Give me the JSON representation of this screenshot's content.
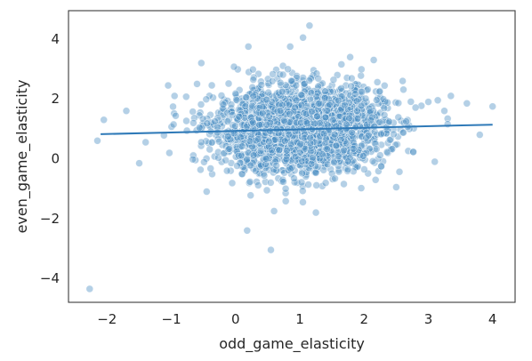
{
  "chart_data": {
    "type": "scatter",
    "title": "",
    "xlabel": "odd_game_elasticity",
    "ylabel": "even_game_elasticity",
    "xlim": [
      -2.6,
      4.35
    ],
    "ylim": [
      -4.8,
      4.95
    ],
    "xticks": [
      -2,
      -1,
      0,
      1,
      2,
      3,
      4
    ],
    "yticks": [
      -4,
      -2,
      0,
      2,
      4
    ],
    "xtick_labels": [
      "−2",
      "−1",
      "0",
      "1",
      "2",
      "3",
      "4"
    ],
    "ytick_labels": [
      "−4",
      "−2",
      "0",
      "2",
      "4"
    ],
    "grid": false,
    "legend": "none",
    "colors": {
      "points": "#4c8fc4",
      "point_edge": "#ffffff",
      "trend_line": "#2f7ab8",
      "axes_frame": "#3b3b3b"
    },
    "trend_line": {
      "x": [
        -2.1,
        4.0
      ],
      "y": [
        0.82,
        1.14
      ]
    },
    "cloud": {
      "n_points": 2400,
      "x_mean": 1.0,
      "x_sd": 0.65,
      "y_mean": 0.98,
      "y_sd": 0.72
    },
    "outliers": [
      {
        "x": -2.27,
        "y": -4.35
      },
      {
        "x": -2.15,
        "y": 0.6
      },
      {
        "x": -2.05,
        "y": 1.3
      },
      {
        "x": -1.7,
        "y": 1.6
      },
      {
        "x": -1.5,
        "y": -0.15
      },
      {
        "x": -1.4,
        "y": 0.55
      },
      {
        "x": -1.05,
        "y": 2.45
      },
      {
        "x": -0.95,
        "y": 2.1
      },
      {
        "x": -0.6,
        "y": 2.5
      },
      {
        "x": -0.45,
        "y": -1.1
      },
      {
        "x": 0.18,
        "y": -2.4
      },
      {
        "x": 0.2,
        "y": 3.75
      },
      {
        "x": 0.55,
        "y": -3.05
      },
      {
        "x": 0.6,
        "y": -1.75
      },
      {
        "x": 0.85,
        "y": 3.75
      },
      {
        "x": 1.05,
        "y": 4.05
      },
      {
        "x": 1.15,
        "y": 4.45
      },
      {
        "x": 1.25,
        "y": -1.8
      },
      {
        "x": 2.15,
        "y": 3.3
      },
      {
        "x": 2.5,
        "y": -0.95
      },
      {
        "x": 2.6,
        "y": 2.6
      },
      {
        "x": 3.0,
        "y": 1.9
      },
      {
        "x": 3.1,
        "y": -0.1
      },
      {
        "x": 3.25,
        "y": 1.6
      },
      {
        "x": 3.35,
        "y": 2.1
      },
      {
        "x": 3.6,
        "y": 1.85
      },
      {
        "x": 3.8,
        "y": 0.8
      },
      {
        "x": 4.0,
        "y": 1.75
      }
    ]
  }
}
